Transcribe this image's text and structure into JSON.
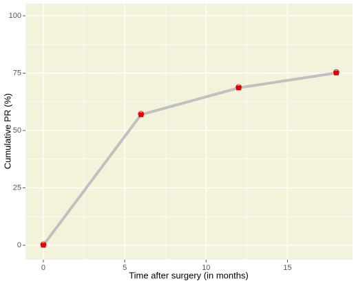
{
  "chart_data": {
    "type": "line",
    "x_label": "Time after surgery (in months)",
    "y_label": "Cumulative PR (%)",
    "x": [
      0,
      6,
      12,
      18
    ],
    "series": [
      {
        "values": [
          0,
          56.9,
          68.6,
          75.1
        ],
        "color": "#c0c0c0",
        "marker_color": "#e00000"
      }
    ],
    "xlim": [
      -1.1,
      19
    ],
    "ylim": [
      -6.3,
      105.4
    ],
    "xticks": [
      0,
      5,
      10,
      15
    ],
    "yticks": [
      0,
      25,
      50,
      75,
      100
    ],
    "grid": true,
    "background": "#f3f3dc"
  }
}
